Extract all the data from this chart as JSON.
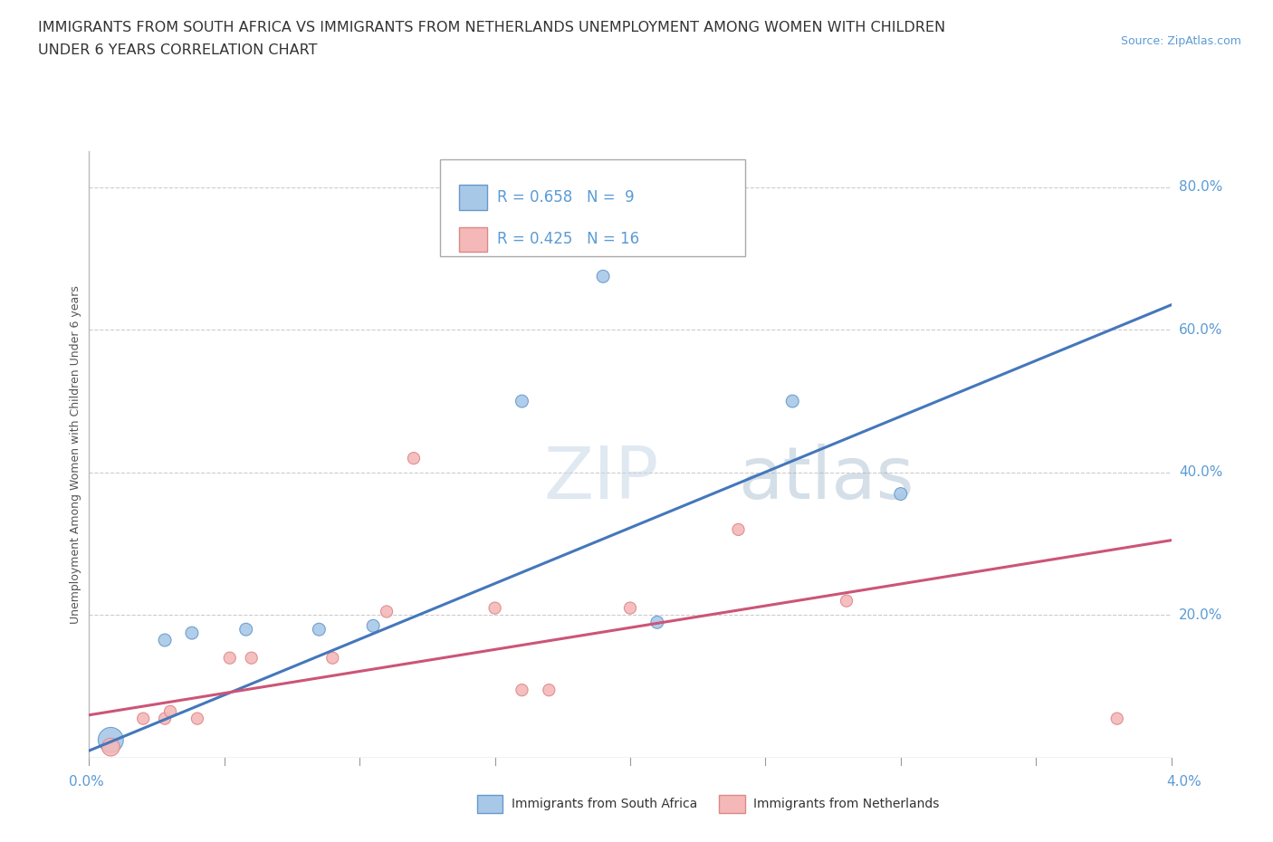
{
  "title_line1": "IMMIGRANTS FROM SOUTH AFRICA VS IMMIGRANTS FROM NETHERLANDS UNEMPLOYMENT AMONG WOMEN WITH CHILDREN",
  "title_line2": "UNDER 6 YEARS CORRELATION CHART",
  "source": "Source: ZipAtlas.com",
  "ylabel": "Unemployment Among Women with Children Under 6 years",
  "y_tick_vals": [
    0.2,
    0.4,
    0.6,
    0.8
  ],
  "y_tick_labels": [
    "20.0%",
    "40.0%",
    "60.0%",
    "80.0%"
  ],
  "xlim": [
    0.0,
    0.04
  ],
  "ylim": [
    0.0,
    0.85
  ],
  "blue_label": "Immigrants from South Africa",
  "pink_label": "Immigrants from Netherlands",
  "blue_R": "R = 0.658",
  "blue_N": "N =  9",
  "pink_R": "R = 0.425",
  "pink_N": "N = 16",
  "blue_color": "#a8c8e8",
  "pink_color": "#f4b8b8",
  "blue_edge_color": "#6699cc",
  "pink_edge_color": "#dd8888",
  "blue_line_color": "#4477bb",
  "pink_line_color": "#cc5577",
  "blue_points": [
    [
      0.0008,
      0.025
    ],
    [
      0.0028,
      0.165
    ],
    [
      0.0038,
      0.175
    ],
    [
      0.0058,
      0.18
    ],
    [
      0.0085,
      0.18
    ],
    [
      0.0105,
      0.185
    ],
    [
      0.016,
      0.5
    ],
    [
      0.019,
      0.675
    ],
    [
      0.021,
      0.19
    ],
    [
      0.026,
      0.5
    ],
    [
      0.03,
      0.37
    ]
  ],
  "blue_sizes": [
    400,
    100,
    100,
    100,
    100,
    100,
    100,
    100,
    100,
    100,
    100
  ],
  "pink_points": [
    [
      0.0008,
      0.015
    ],
    [
      0.002,
      0.055
    ],
    [
      0.0028,
      0.055
    ],
    [
      0.003,
      0.065
    ],
    [
      0.004,
      0.055
    ],
    [
      0.0052,
      0.14
    ],
    [
      0.006,
      0.14
    ],
    [
      0.009,
      0.14
    ],
    [
      0.011,
      0.205
    ],
    [
      0.012,
      0.42
    ],
    [
      0.015,
      0.21
    ],
    [
      0.016,
      0.095
    ],
    [
      0.017,
      0.095
    ],
    [
      0.02,
      0.21
    ],
    [
      0.024,
      0.32
    ],
    [
      0.028,
      0.22
    ],
    [
      0.038,
      0.055
    ]
  ],
  "pink_sizes": [
    200,
    90,
    90,
    90,
    90,
    90,
    90,
    90,
    90,
    90,
    90,
    90,
    90,
    90,
    90,
    90,
    90
  ],
  "blue_line_x": [
    0.0,
    0.04
  ],
  "blue_line_y": [
    0.01,
    0.635
  ],
  "pink_line_x": [
    0.0,
    0.04
  ],
  "pink_line_y": [
    0.06,
    0.305
  ],
  "background_color": "#ffffff",
  "grid_color": "#cccccc",
  "title_color": "#333333",
  "ylabel_color": "#555555",
  "tick_label_color": "#5b9bd5",
  "bottom_label_color": "#333333",
  "x_tick_positions": [
    0.0,
    0.005,
    0.01,
    0.015,
    0.02,
    0.025,
    0.03,
    0.035,
    0.04
  ]
}
